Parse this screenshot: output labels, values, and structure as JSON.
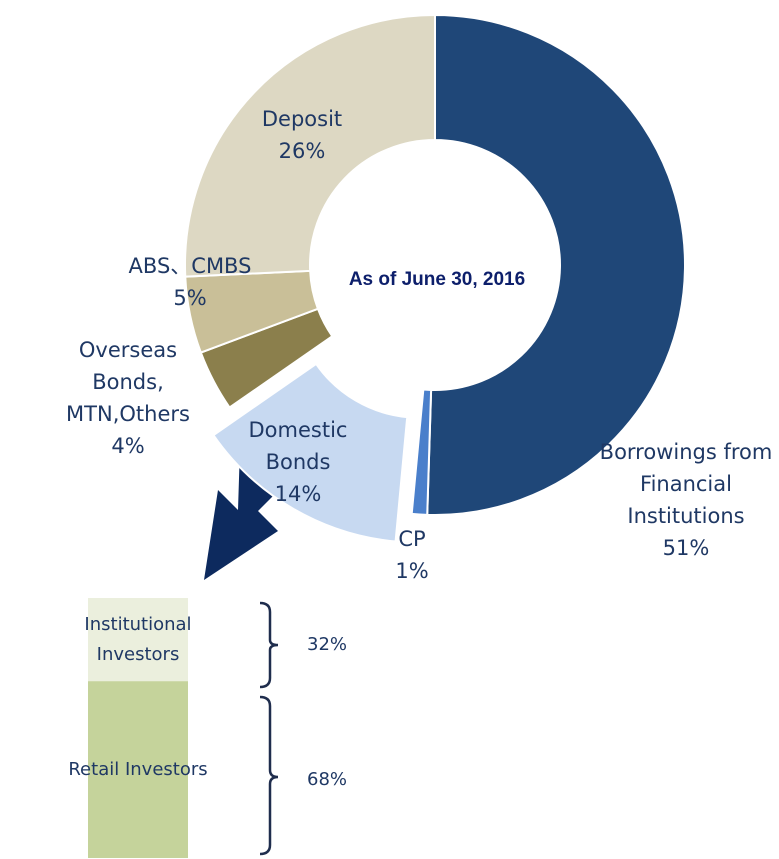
{
  "chart_data": [
    {
      "type": "donut",
      "annotation": "As of  June 30, 2016",
      "categories": [
        "Borrowings from Financial Institutions",
        "CP",
        "Domestic Bonds",
        "Overseas Bonds, MTN,Others",
        "ABS、CMBS",
        "Deposit"
      ],
      "values": [
        51,
        1,
        14,
        4,
        5,
        26
      ],
      "value_labels": [
        "51%",
        "1%",
        "14%",
        "4%",
        "5%",
        "26%"
      ],
      "colors": [
        "#1f4778",
        "#4a7fcb",
        "#c7d9f1",
        "#8b7f4c",
        "#c9bf98",
        "#ddd8c3"
      ],
      "explode": [
        0,
        0,
        1,
        0,
        0,
        0
      ]
    },
    {
      "type": "bar",
      "categories": [
        "Institutional Investors",
        "Retail Investors"
      ],
      "values": [
        32,
        68
      ],
      "value_labels": [
        "32%",
        "68%"
      ],
      "colors": [
        "#ebefdd",
        "#c5d39b"
      ]
    }
  ]
}
